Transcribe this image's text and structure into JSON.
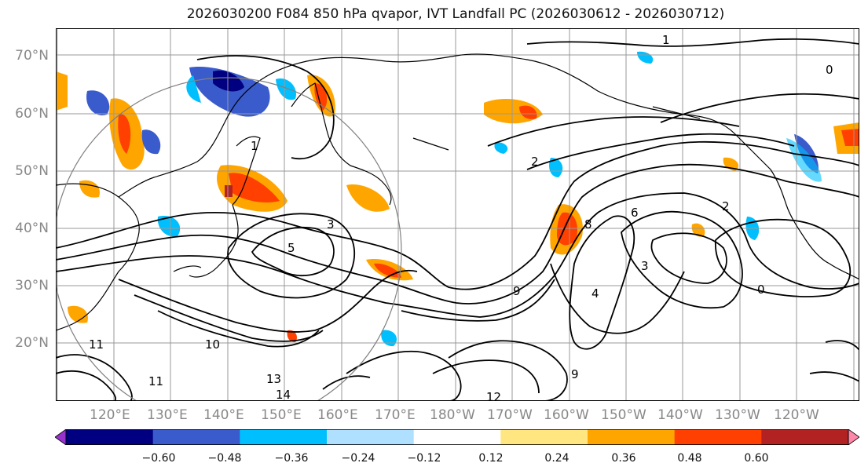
{
  "title": "2026030200 F084 850 hPa qvapor, IVT Landfall PC (2026030612 - 2026030712)",
  "lat_labels": [
    "70°N",
    "60°N",
    "50°N",
    "40°N",
    "30°N",
    "20°N"
  ],
  "lon_labels": [
    "120°E",
    "130°E",
    "140°E",
    "150°E",
    "160°E",
    "170°E",
    "180°W",
    "170°W",
    "160°W",
    "150°W",
    "140°W",
    "130°W",
    "120°W"
  ],
  "colorbar": {
    "labels": [
      "−0.60",
      "−0.48",
      "−0.36",
      "−0.24",
      "−0.12",
      "0.12",
      "0.24",
      "0.36",
      "0.48",
      "0.60"
    ],
    "colors": [
      "#9932cc",
      "#000080",
      "#3a5bcc",
      "#00bfff",
      "#b0e0ff",
      "#ffffff",
      "#ffe680",
      "#ffa500",
      "#ff4000",
      "#b22222",
      "#ff88aa"
    ]
  },
  "contour_labels": [
    "1",
    "2",
    "3",
    "4",
    "5",
    "6",
    "8",
    "9",
    "10",
    "11",
    "12",
    "13",
    "14",
    "0"
  ],
  "colors": {
    "grid": "#999999",
    "contour": "#000000",
    "coast": "#000000",
    "circle": "#808080"
  }
}
